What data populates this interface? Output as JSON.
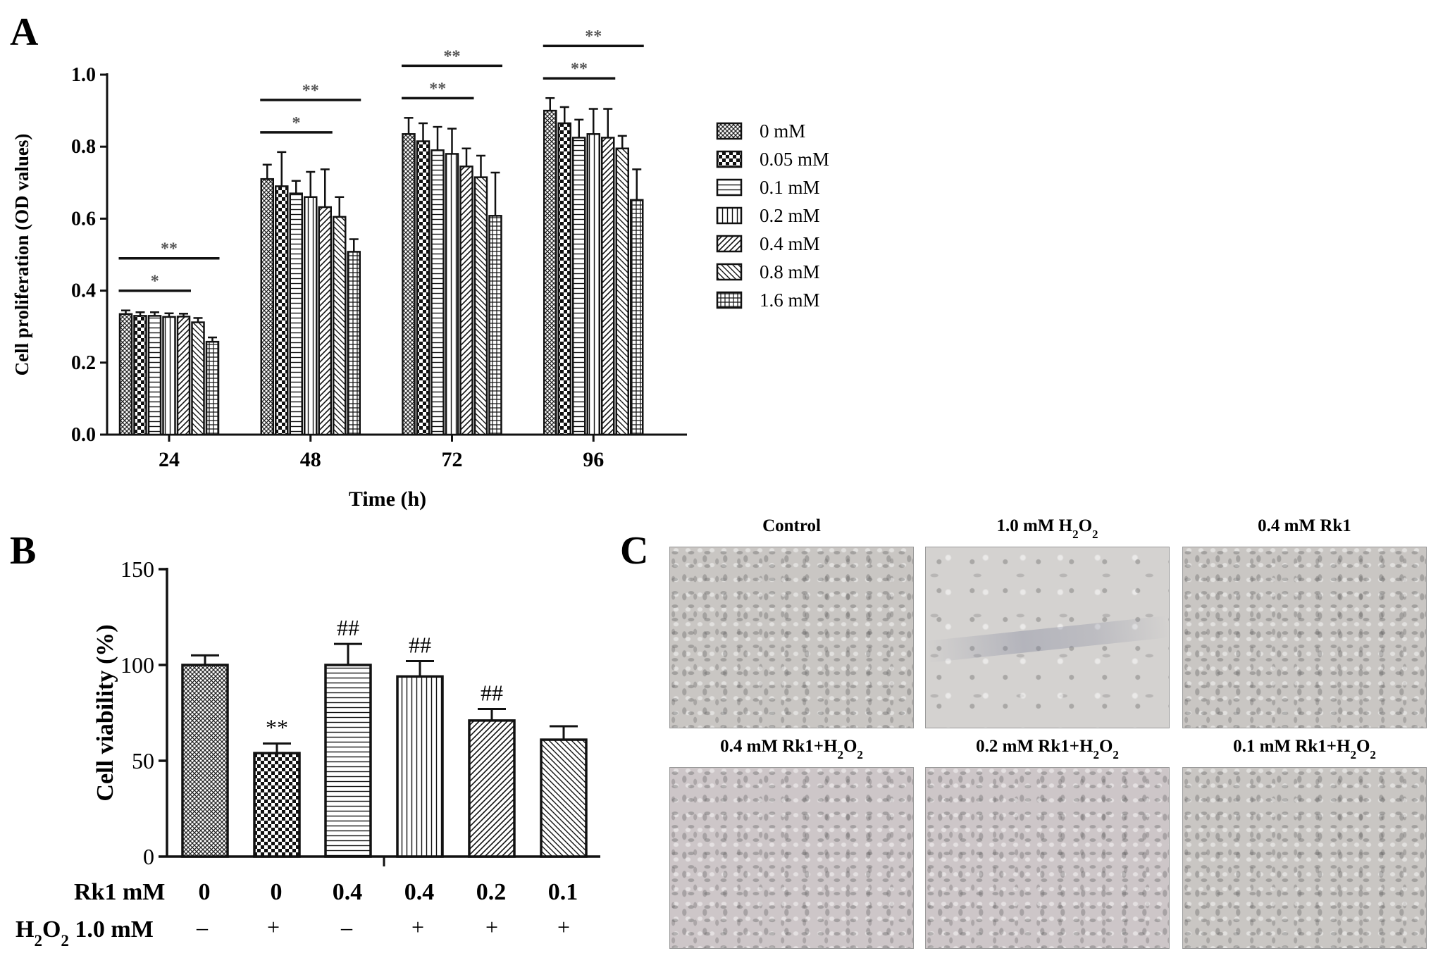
{
  "chart_data": [
    {
      "panel": "A",
      "type": "bar",
      "categories": [
        "24",
        "48",
        "72",
        "96"
      ],
      "xlabel": "Time (h)",
      "ylabel": "Cell proliferation (OD values)",
      "ylim": [
        0,
        1.0
      ],
      "yticks": [
        "0.0",
        "0.2",
        "0.4",
        "0.6",
        "0.8",
        "1.0"
      ],
      "legend_position": "right",
      "series": [
        {
          "name": "0 mM",
          "pattern": "diamond",
          "values": [
            0.335,
            0.71,
            0.835,
            0.9
          ],
          "errors": [
            0.01,
            0.04,
            0.045,
            0.035
          ]
        },
        {
          "name": "0.05 mM",
          "pattern": "checker",
          "values": [
            0.33,
            0.69,
            0.815,
            0.865
          ],
          "errors": [
            0.01,
            0.095,
            0.05,
            0.045
          ]
        },
        {
          "name": "0.1 mM",
          "pattern": "hlines",
          "values": [
            0.33,
            0.67,
            0.79,
            0.825
          ],
          "errors": [
            0.01,
            0.035,
            0.065,
            0.05
          ]
        },
        {
          "name": "0.2 mM",
          "pattern": "vlines",
          "values": [
            0.327,
            0.66,
            0.78,
            0.835
          ],
          "errors": [
            0.01,
            0.07,
            0.07,
            0.07
          ]
        },
        {
          "name": "0.4 mM",
          "pattern": "diag-right",
          "values": [
            0.328,
            0.632,
            0.745,
            0.825
          ],
          "errors": [
            0.008,
            0.105,
            0.05,
            0.08
          ]
        },
        {
          "name": "0.8 mM",
          "pattern": "diag-left",
          "values": [
            0.312,
            0.605,
            0.715,
            0.795
          ],
          "errors": [
            0.012,
            0.055,
            0.06,
            0.035
          ]
        },
        {
          "name": "1.6 mM",
          "pattern": "grid",
          "values": [
            0.258,
            0.508,
            0.608,
            0.652
          ],
          "errors": [
            0.012,
            0.035,
            0.12,
            0.085
          ]
        }
      ],
      "significance": [
        {
          "group": "24",
          "from_series": 0,
          "to_series": 6,
          "label": "**",
          "level": 2
        },
        {
          "group": "24",
          "from_series": 0,
          "to_series": 5,
          "label": "*",
          "level": 1
        },
        {
          "group": "48",
          "from_series": 0,
          "to_series": 6,
          "label": "**",
          "level": 2
        },
        {
          "group": "48",
          "from_series": 0,
          "to_series": 5,
          "label": "*",
          "level": 1
        },
        {
          "group": "72",
          "from_series": 0,
          "to_series": 6,
          "label": "**",
          "level": 2
        },
        {
          "group": "72",
          "from_series": 0,
          "to_series": 5,
          "label": "**",
          "level": 1
        },
        {
          "group": "96",
          "from_series": 0,
          "to_series": 6,
          "label": "**",
          "level": 2
        },
        {
          "group": "96",
          "from_series": 0,
          "to_series": 5,
          "label": "**",
          "level": 1
        }
      ]
    },
    {
      "panel": "B",
      "type": "bar",
      "ylabel": "Cell viability (%)",
      "ylim": [
        0,
        150
      ],
      "yticks": [
        "0",
        "50",
        "100",
        "150"
      ],
      "row_labels": [
        "Rk1 mM",
        "H2O2 1.0 mM"
      ],
      "rk1": [
        "0",
        "0",
        "0.4",
        "0.4",
        "0.2",
        "0.1"
      ],
      "h2o2": [
        "–",
        "+",
        "–",
        "+",
        "+",
        "+"
      ],
      "values": [
        100,
        54,
        100,
        94,
        71,
        61
      ],
      "errors": [
        5,
        5,
        11,
        8,
        6,
        7
      ],
      "patterns": [
        "diamond",
        "checker",
        "hlines",
        "vlines",
        "diag-right",
        "diag-left"
      ],
      "annotations": [
        "",
        "**",
        "##",
        "##",
        "##",
        ""
      ]
    }
  ],
  "panels": {
    "a_label": "A",
    "b_label": "B",
    "c_label": "C"
  },
  "panel_c": {
    "images": [
      {
        "label": "Control",
        "style": "dense"
      },
      {
        "label": "1.0 mM H2O2",
        "style": "sparse"
      },
      {
        "label": "0.4 mM Rk1",
        "style": "dense"
      },
      {
        "label": "0.4 mM Rk1+H2O2",
        "style": "dense-pink"
      },
      {
        "label": "0.2 mM Rk1+H2O2",
        "style": "dense-pink"
      },
      {
        "label": "0.1 mM Rk1+H2O2",
        "style": "dense"
      }
    ]
  }
}
